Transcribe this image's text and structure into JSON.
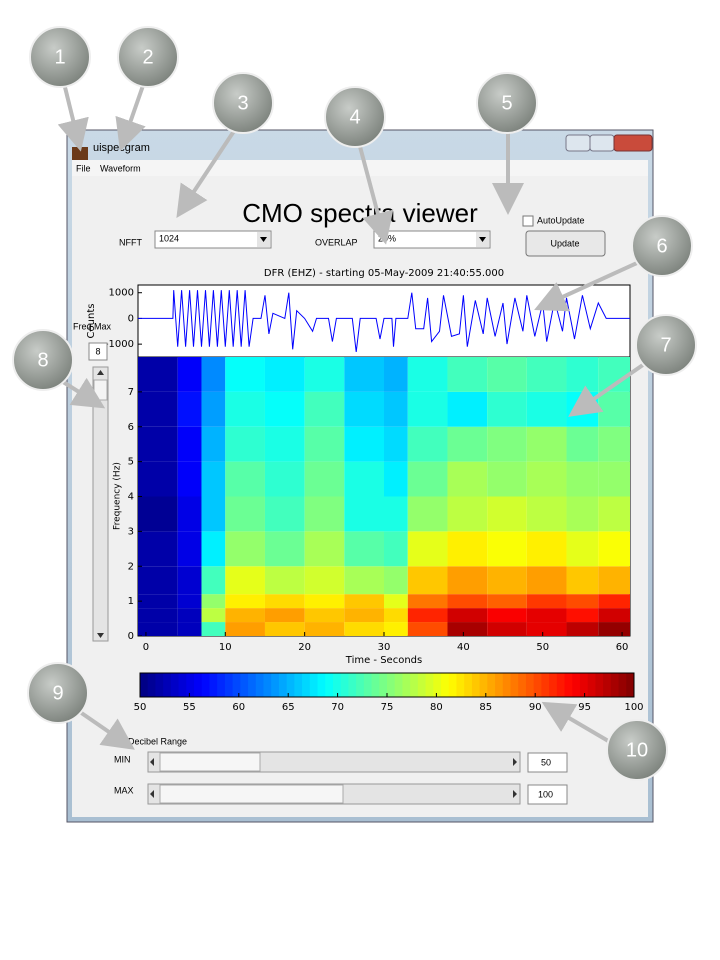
{
  "window": {
    "title": "uispecgram",
    "menu": [
      "File",
      "Waveform"
    ]
  },
  "app_title": "CMO spectra viewer",
  "controls": {
    "nfft_label": "NFFT",
    "nfft_value": "1024",
    "overlap_label": "OVERLAP",
    "overlap_value": "20%",
    "autoupdate_label": "AutoUpdate",
    "autoupdate_checked": false,
    "update_button": "Update",
    "freq_max_label": "Freq Max",
    "freq_max_value": "8",
    "decibel_range_label": "Decibel Range",
    "min_label": "MIN",
    "min_value": "50",
    "max_label": "MAX",
    "max_value": "100"
  },
  "callouts": [
    "1",
    "2",
    "3",
    "4",
    "5",
    "6",
    "7",
    "8",
    "9",
    "10"
  ],
  "chart_data": [
    {
      "type": "line",
      "title": "DFR (EHZ) - starting 05-May-2009 21:40:55.000",
      "ylabel": "Counts",
      "x": [
        -1,
        3.4,
        3.5,
        4,
        4.5,
        5,
        5.5,
        6,
        6.5,
        7,
        7.5,
        8,
        8.5,
        9,
        9.5,
        10,
        10.5,
        11,
        11.5,
        12,
        12.5,
        13,
        13.5,
        14.5,
        15,
        15.5,
        16,
        17.5,
        18,
        18.5,
        19,
        20,
        21,
        21.5,
        23,
        23.5,
        24,
        26,
        26.5,
        27,
        29,
        29.5,
        30,
        31,
        31.2,
        31.5,
        33,
        33.5,
        34,
        35,
        35.5,
        36,
        37,
        37.5,
        38.5,
        39.5,
        40,
        40.5,
        41.5,
        42.5,
        43,
        44,
        45,
        45.5,
        46.5,
        47.5,
        48,
        49,
        50,
        50.5,
        51.5,
        52.5,
        53,
        54,
        55,
        56,
        57,
        58,
        61
      ],
      "series": [
        {
          "color": "#0000ff",
          "values": [
            0,
            0,
            1100,
            -1100,
            1100,
            -1100,
            1100,
            -1100,
            1100,
            -1100,
            1100,
            -1100,
            1100,
            -1100,
            1100,
            -1100,
            1100,
            -1100,
            1100,
            -1100,
            1100,
            -1100,
            0,
            0,
            900,
            -600,
            200,
            0,
            1000,
            -1200,
            300,
            0,
            -500,
            0,
            0,
            -900,
            0,
            0,
            -1300,
            0,
            0,
            -800,
            0,
            0,
            -1100,
            0,
            0,
            1000,
            -400,
            -400,
            800,
            -900,
            -500,
            900,
            -700,
            -600,
            900,
            -1100,
            700,
            -600,
            800,
            -700,
            600,
            -1000,
            800,
            -500,
            900,
            -700,
            600,
            -900,
            700,
            -500,
            800,
            -800,
            900,
            -400,
            600,
            0,
            0
          ]
        }
      ],
      "xlim": [
        -1,
        61
      ],
      "ylim": [
        -1500,
        1300
      ],
      "yticks": [
        1000,
        0,
        -1000
      ]
    },
    {
      "type": "heatmap",
      "xlabel": "Time - Seconds",
      "ylabel": "Frequency (Hz)",
      "colormap": "jet",
      "clim": [
        50,
        100
      ],
      "time_bins": [
        -1,
        4,
        7,
        10,
        15,
        20,
        25,
        30,
        33,
        38,
        43,
        48,
        53,
        57,
        61
      ],
      "freq_bins": [
        0,
        0.4,
        0.8,
        1.2,
        2,
        3,
        4,
        5,
        6,
        7,
        8
      ],
      "values": [
        [
          52,
          53,
          72,
          86,
          84,
          85,
          83,
          82,
          90,
          98,
          96,
          95,
          97,
          99
        ],
        [
          52,
          53,
          78,
          85,
          86,
          84,
          85,
          83,
          92,
          96,
          94,
          95,
          93,
          96
        ],
        [
          52,
          54,
          76,
          82,
          83,
          82,
          84,
          80,
          88,
          90,
          89,
          91,
          90,
          92
        ],
        [
          52,
          54,
          72,
          80,
          78,
          79,
          77,
          76,
          84,
          86,
          85,
          86,
          84,
          85
        ],
        [
          52,
          55,
          68,
          76,
          74,
          77,
          73,
          72,
          80,
          82,
          81,
          82,
          80,
          81
        ],
        [
          51,
          55,
          66,
          74,
          72,
          75,
          70,
          70,
          76,
          78,
          79,
          78,
          77,
          78
        ],
        [
          52,
          56,
          66,
          73,
          71,
          74,
          70,
          68,
          74,
          77,
          76,
          77,
          76,
          76
        ],
        [
          52,
          56,
          65,
          71,
          70,
          73,
          68,
          67,
          72,
          74,
          75,
          76,
          74,
          75
        ],
        [
          52,
          57,
          64,
          70,
          69,
          72,
          67,
          66,
          70,
          68,
          71,
          70,
          69,
          73
        ],
        [
          52,
          56,
          63,
          69,
          68,
          70,
          66,
          65,
          70,
          72,
          73,
          72,
          71,
          72
        ]
      ],
      "xlim": [
        -1,
        61
      ],
      "ylim": [
        0,
        8
      ],
      "xticks": [
        0,
        10,
        20,
        30,
        40,
        50,
        60
      ],
      "yticks": [
        0,
        1,
        2,
        3,
        4,
        5,
        6,
        7
      ]
    },
    {
      "type": "colorbar",
      "colormap": "jet",
      "xlim": [
        50,
        100
      ],
      "xticks": [
        50,
        55,
        60,
        65,
        70,
        75,
        80,
        85,
        90,
        95,
        100
      ]
    }
  ]
}
